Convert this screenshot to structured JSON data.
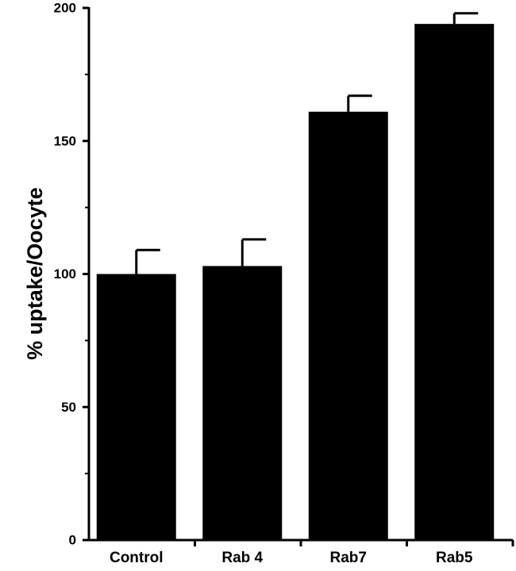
{
  "chart_data": {
    "type": "bar",
    "title": "",
    "xlabel": "",
    "ylabel": "%   uptake/Oocyte",
    "categories": [
      "Control",
      "Rab 4",
      "Rab7",
      "Rab5"
    ],
    "values": [
      100,
      103,
      161,
      194
    ],
    "errors": [
      9,
      10,
      6,
      4
    ],
    "ylim": [
      0,
      200
    ],
    "yticks": [
      0,
      50,
      100,
      150,
      200
    ],
    "bar_color": "#000000",
    "grid": false,
    "legend": "none"
  }
}
